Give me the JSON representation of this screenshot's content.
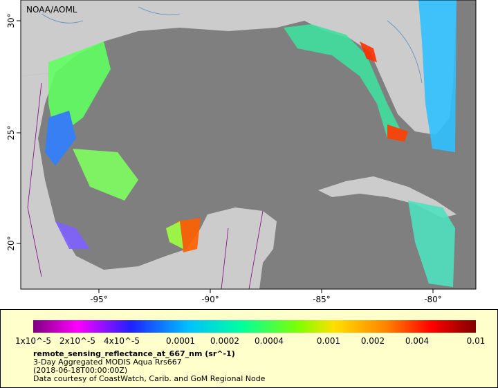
{
  "map": {
    "credit": "NOAA/AOML",
    "lat_labels": [
      "30°",
      "25°",
      "20°"
    ],
    "lon_labels": [
      "-95°",
      "-90°",
      "-85°",
      "-80°"
    ]
  },
  "legend": {
    "ticks": [
      "1x10^-5",
      "2x10^-5",
      "4x10^-5",
      "0.0001",
      "0.0002",
      "0.0004",
      "0.001",
      "0.002",
      "0.004",
      "0.01"
    ],
    "title": "remote_sensing_reflectance_at_667_nm (sr^-1)",
    "lines": [
      "3-Day Aggregated MODIS Aqua Rrs667",
      "(2018-06-18T00:00:00Z)",
      "Data courtesy of CoastWatch, Carib. and GoM Regional Node"
    ]
  }
}
